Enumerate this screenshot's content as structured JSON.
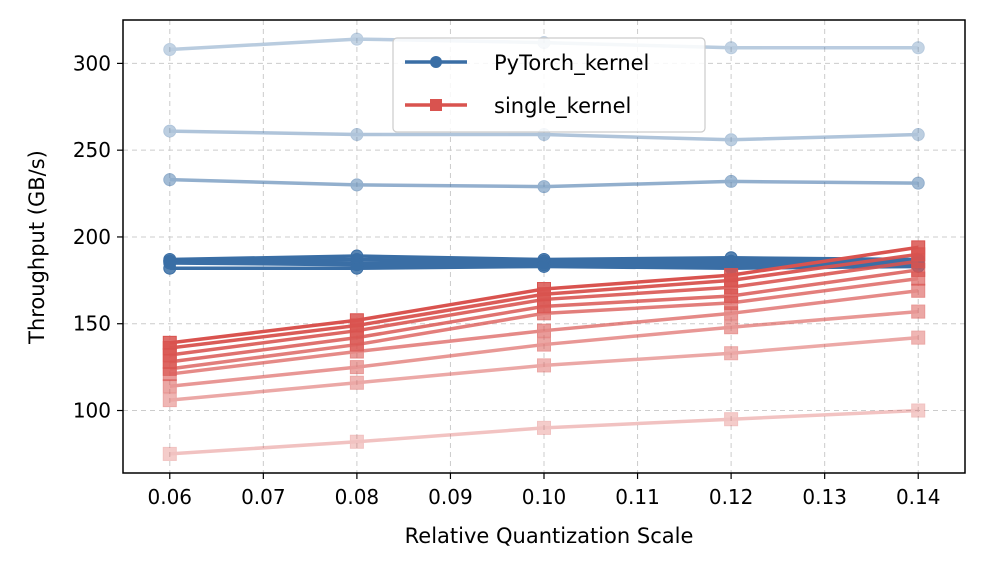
{
  "chart_data": {
    "type": "line",
    "title": "",
    "xlabel": "Relative Quantization Scale",
    "ylabel": "Throughput (GB/s)",
    "x": [
      0.06,
      0.08,
      0.1,
      0.12,
      0.14
    ],
    "x_ticks": [
      "0.06",
      "0.07",
      "0.08",
      "0.09",
      "0.10",
      "0.11",
      "0.12",
      "0.13",
      "0.14"
    ],
    "y_ticks": [
      "100",
      "150",
      "200",
      "250",
      "300"
    ],
    "xlim": [
      0.055,
      0.145
    ],
    "ylim": [
      64,
      325
    ],
    "grid": true,
    "legend_position": "top-center",
    "legend": [
      {
        "label": "PyTorch_kernel",
        "color": "#3a6ea5",
        "marker": "circle"
      },
      {
        "label": "single_kernel",
        "color": "#d9534f",
        "marker": "square"
      }
    ],
    "series": [
      {
        "group": "PyTorch_kernel",
        "opacity": 0.35,
        "values": [
          308,
          314,
          312,
          309,
          309
        ]
      },
      {
        "group": "PyTorch_kernel",
        "opacity": 0.4,
        "values": [
          261,
          259,
          259,
          256,
          259
        ]
      },
      {
        "group": "PyTorch_kernel",
        "opacity": 0.55,
        "values": [
          233,
          230,
          229,
          232,
          231
        ]
      },
      {
        "group": "PyTorch_kernel",
        "opacity": 1.0,
        "values": [
          187,
          189,
          187,
          188,
          187
        ]
      },
      {
        "group": "PyTorch_kernel",
        "opacity": 1.0,
        "values": [
          186,
          187,
          186,
          186,
          186
        ]
      },
      {
        "group": "PyTorch_kernel",
        "opacity": 1.0,
        "values": [
          186,
          185,
          185,
          184,
          185
        ]
      },
      {
        "group": "PyTorch_kernel",
        "opacity": 1.0,
        "values": [
          185,
          184,
          184,
          183,
          185
        ]
      },
      {
        "group": "PyTorch_kernel",
        "opacity": 1.0,
        "values": [
          182,
          182,
          183,
          182,
          183
        ]
      },
      {
        "group": "single_kernel",
        "opacity": 1.0,
        "values": [
          139,
          152,
          170,
          178,
          194
        ]
      },
      {
        "group": "single_kernel",
        "opacity": 0.95,
        "values": [
          136,
          149,
          167,
          175,
          190
        ]
      },
      {
        "group": "single_kernel",
        "opacity": 0.88,
        "values": [
          132,
          146,
          164,
          171,
          186
        ]
      },
      {
        "group": "single_kernel",
        "opacity": 0.82,
        "values": [
          128,
          142,
          160,
          166,
          181
        ]
      },
      {
        "group": "single_kernel",
        "opacity": 0.75,
        "values": [
          124,
          138,
          156,
          162,
          176
        ]
      },
      {
        "group": "single_kernel",
        "opacity": 0.68,
        "values": [
          121,
          134,
          146,
          156,
          169
        ]
      },
      {
        "group": "single_kernel",
        "opacity": 0.6,
        "values": [
          114,
          125,
          138,
          148,
          157
        ]
      },
      {
        "group": "single_kernel",
        "opacity": 0.5,
        "values": [
          106,
          116,
          126,
          133,
          142
        ]
      },
      {
        "group": "single_kernel",
        "opacity": 0.35,
        "values": [
          75,
          82,
          90,
          95,
          100
        ]
      }
    ]
  }
}
